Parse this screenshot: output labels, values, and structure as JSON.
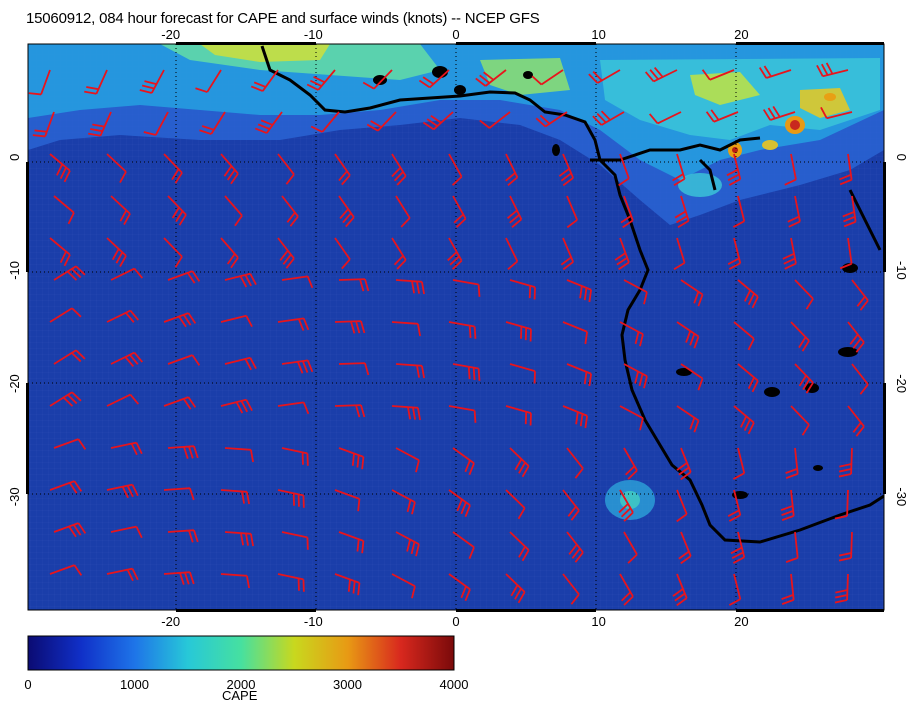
{
  "title": "15060912, 084 hour forecast for CAPE and surface winds (knots) -- NCEP GFS",
  "map": {
    "lon_range": [
      -30,
      30
    ],
    "lat_range": [
      -40,
      10
    ],
    "lon_ticks": [
      "-20",
      "-10",
      "0",
      "10",
      "20"
    ],
    "lat_ticks": [
      "0",
      "-10",
      "-20",
      "-30"
    ],
    "coast_color": "#000000",
    "wind_barb_color": "#e8141c",
    "ocean_color": "#1a3eaa"
  },
  "colorbar": {
    "label": "CAPE",
    "ticks": [
      "0",
      "1000",
      "2000",
      "3000",
      "4000"
    ],
    "min": 0,
    "max": 4000,
    "colors": [
      "#0b0b73",
      "#1030c8",
      "#1e74e8",
      "#27c8d8",
      "#46e0a0",
      "#c8d81e",
      "#e89a14",
      "#d8281e",
      "#7a0a0a"
    ]
  }
}
